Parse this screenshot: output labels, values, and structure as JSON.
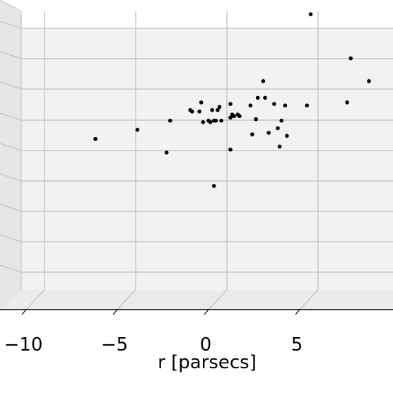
{
  "chart_data": {
    "type": "scatter",
    "projection": "3d",
    "xlabel": "r [parsecs]",
    "xticks": [
      -10,
      -5,
      0,
      5
    ],
    "xtick_labels": [
      "−10",
      "−5",
      "0",
      "5"
    ],
    "xlim": [
      -11.4,
      10.1
    ],
    "grid": true,
    "point_color": "#000000",
    "points": [
      {
        "x": 5.6,
        "y": 9.2
      },
      {
        "x": 7.8,
        "y": 6.3
      },
      {
        "x": 8.8,
        "y": 4.8
      },
      {
        "x": 3.0,
        "y": 4.8
      },
      {
        "x": 0.5,
        "y": 2.9
      },
      {
        "x": 2.7,
        "y": 3.7
      },
      {
        "x": 3.1,
        "y": 3.7
      },
      {
        "x": 1.2,
        "y": 3.3
      },
      {
        "x": 3.6,
        "y": 3.3
      },
      {
        "x": 4.2,
        "y": 3.2
      },
      {
        "x": 5.4,
        "y": 3.2
      },
      {
        "x": 7.6,
        "y": 3.4
      },
      {
        "x": -0.4,
        "y": 3.4
      },
      {
        "x": 0.6,
        "y": 3.1
      },
      {
        "x": 2.3,
        "y": 3.2
      },
      {
        "x": -1.0,
        "y": 2.9
      },
      {
        "x": -0.9,
        "y": 2.8
      },
      {
        "x": 0.2,
        "y": 2.9
      },
      {
        "x": -0.5,
        "y": 2.8
      },
      {
        "x": 1.3,
        "y": 2.6
      },
      {
        "x": 1.4,
        "y": 2.5
      },
      {
        "x": 1.6,
        "y": 2.6
      },
      {
        "x": 1.7,
        "y": 2.5
      },
      {
        "x": 1.2,
        "y": 2.4
      },
      {
        "x": 2.6,
        "y": 2.3
      },
      {
        "x": 4.0,
        "y": 2.2
      },
      {
        "x": 0.0,
        "y": 2.2
      },
      {
        "x": 0.1,
        "y": 2.1
      },
      {
        "x": 0.3,
        "y": 2.2
      },
      {
        "x": 0.4,
        "y": 2.2
      },
      {
        "x": 0.7,
        "y": 2.2
      },
      {
        "x": -0.3,
        "y": 2.1
      },
      {
        "x": -2.1,
        "y": 2.2
      },
      {
        "x": 3.8,
        "y": 1.7
      },
      {
        "x": 2.4,
        "y": 1.3
      },
      {
        "x": 3.3,
        "y": 1.4
      },
      {
        "x": 4.3,
        "y": 1.2
      },
      {
        "x": -3.9,
        "y": 1.6
      },
      {
        "x": -6.2,
        "y": 1.0
      },
      {
        "x": 3.9,
        "y": 0.5
      },
      {
        "x": 1.2,
        "y": 0.3
      },
      {
        "x": -2.3,
        "y": 0.1
      },
      {
        "x": 0.3,
        "y": -2.1
      }
    ]
  }
}
